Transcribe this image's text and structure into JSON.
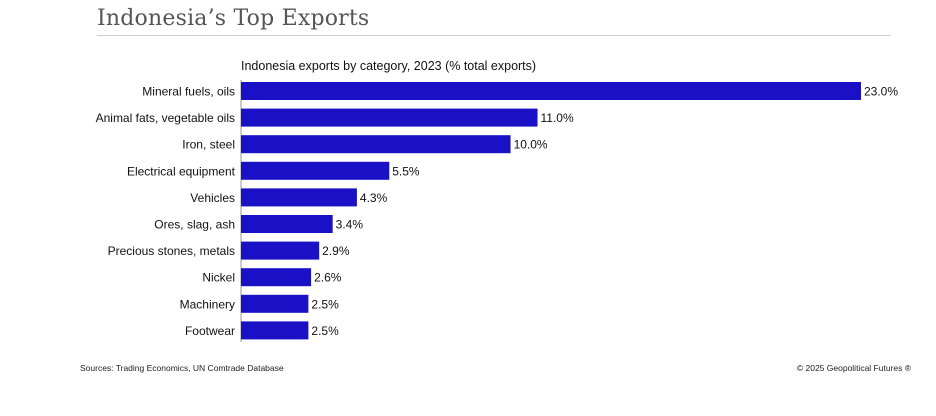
{
  "header": {
    "title": "Indonesia’s Top Exports"
  },
  "footer": {
    "sources": "Sources: Trading Economics, UN Comtrade Database",
    "copyright": "© 2025 Geopolitical Futures ®"
  },
  "colors": {
    "bar": "#1a10c6"
  },
  "chart_data": {
    "type": "bar",
    "orientation": "horizontal",
    "title": "Indonesia exports by category, 2023 (% total exports)",
    "categories": [
      "Mineral fuels, oils",
      "Animal fats, vegetable oils",
      "Iron, steel",
      "Electrical equipment",
      "Vehicles",
      "Ores, slag, ash",
      "Precious stones, metals",
      "Nickel",
      "Machinery",
      "Footwear"
    ],
    "values": [
      23.0,
      11.0,
      10.0,
      5.5,
      4.3,
      3.4,
      2.9,
      2.6,
      2.5,
      2.5
    ],
    "value_labels": [
      "23.0%",
      "11.0%",
      "10.0%",
      "5.5%",
      "4.3%",
      "3.4%",
      "2.9%",
      "2.6%",
      "2.5%",
      "2.5%"
    ],
    "xlim": [
      0,
      23
    ],
    "grid": false
  }
}
